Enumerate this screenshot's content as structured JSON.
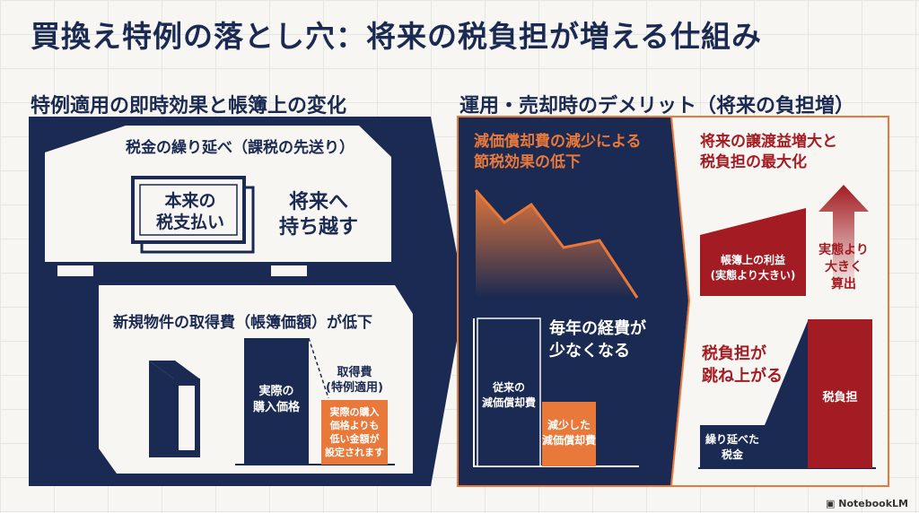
{
  "title": "買換え特例の落とし穴：将来の税負担が増える仕組み",
  "left": {
    "heading": "特例適用の即時効果と帳簿上の変化",
    "deferral_title": "税金の繰り延べ（課税の先送り）",
    "original_tax_line1": "本来の",
    "original_tax_line2": "税支払い",
    "carry_line1": "将来へ",
    "carry_line2": "持ち越す",
    "cost_title": "新規物件の取得費（帳簿価額）が低下",
    "actual_price_line1": "実際の",
    "actual_price_line2": "購入価格",
    "acq_label_line1": "取得費",
    "acq_label_line2": "(特例適用)",
    "acq_note": [
      "実際の購入",
      "価格よりも",
      "低い金額が",
      "設定されます"
    ]
  },
  "right": {
    "heading": "運用・売却時のデメリット（将来の負担増）",
    "panel1": {
      "title_line1": "減価償却費の減少による",
      "title_line2": "節税効果の低下",
      "expense_line1": "毎年の経費が",
      "expense_line2": "少なくなる",
      "old_dep_line1": "従来の",
      "old_dep_line2": "減価償却費",
      "new_dep_line1": "減少した",
      "new_dep_line2": "減価償却費"
    },
    "panel2": {
      "title_line1": "将来の譲渡益増大と",
      "title_line2": "税負担の最大化",
      "book_profit_line1": "帳簿上の利益",
      "book_profit_line2": "(実態より大きい)",
      "calc_line1": "実態より",
      "calc_line2": "大きく",
      "calc_line3": "算出",
      "jump_line1": "税負担が",
      "jump_line2": "跳ね上がる",
      "deferred_line1": "繰り延べた",
      "deferred_line2": "税金",
      "tax_burden": "税負担"
    }
  },
  "watermark": "NotebookLM",
  "colors": {
    "navy": "#1b2a52",
    "orange": "#e9793a",
    "red": "#a31c23"
  }
}
